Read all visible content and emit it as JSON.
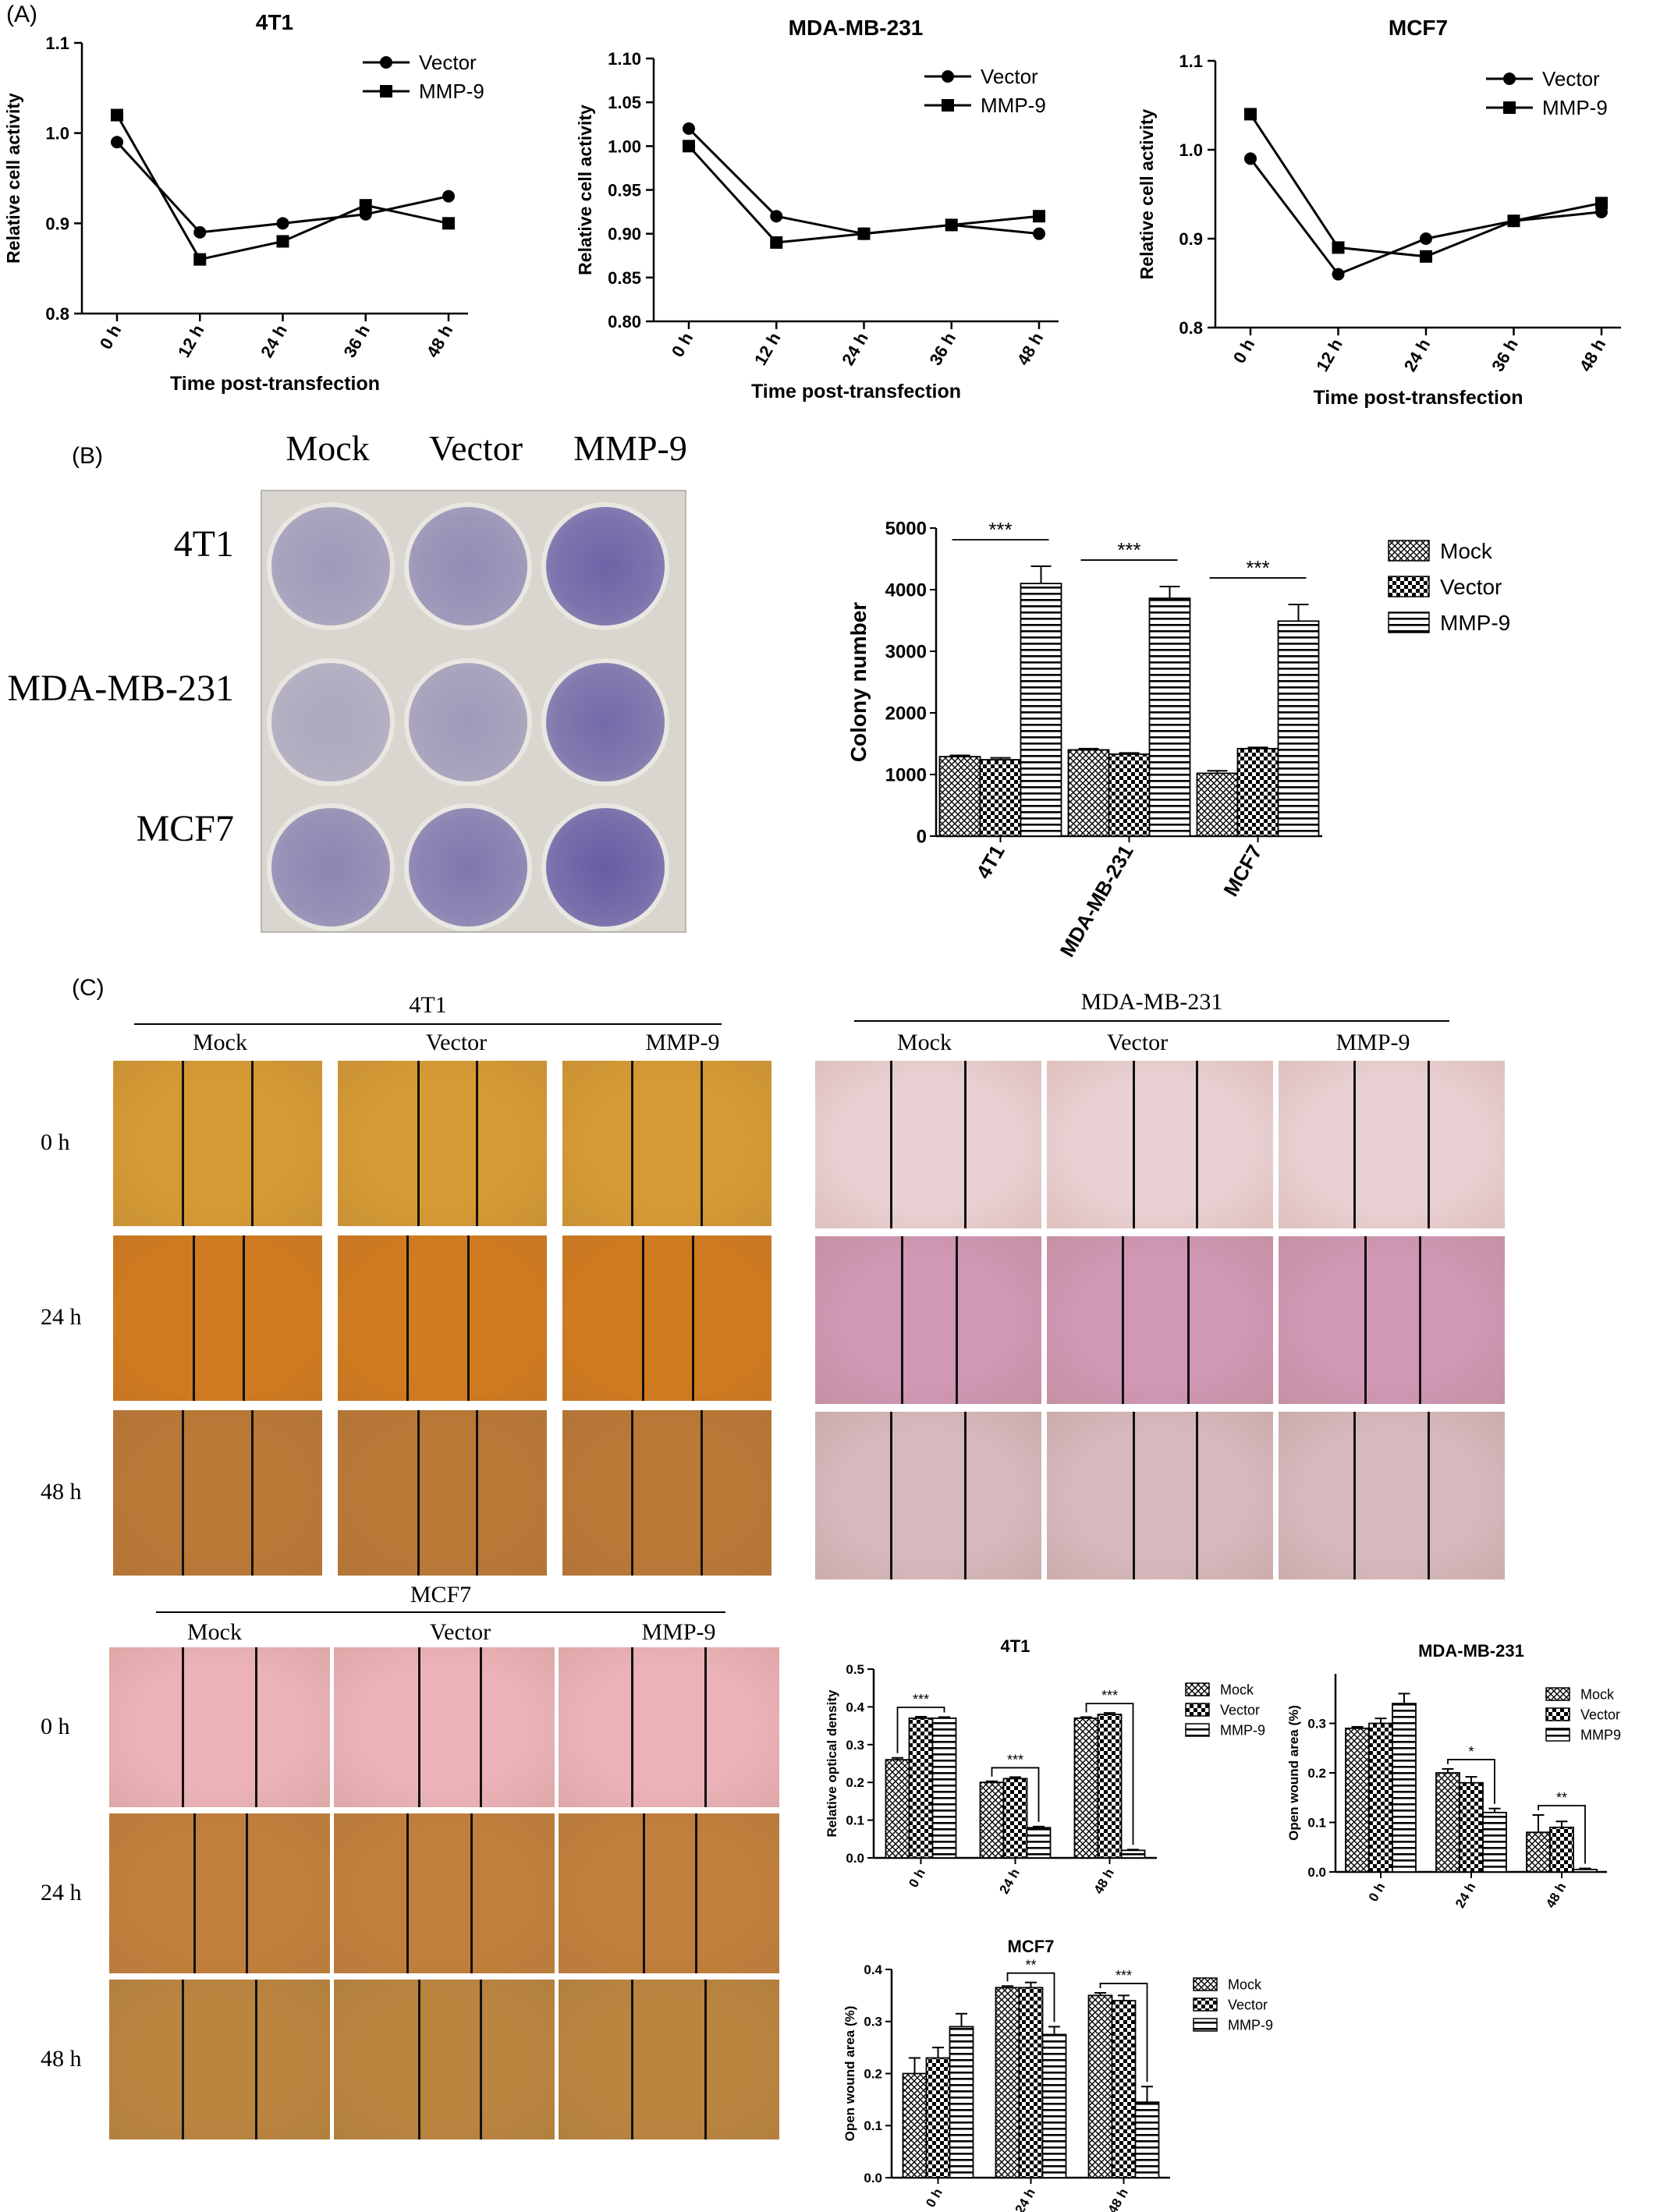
{
  "panels": {
    "a": "(A)",
    "b": "(B)",
    "c": "(C)"
  },
  "colors": {
    "purple_stain": "#5a4fa0",
    "orange_field": "#d8902b",
    "pink_field": "#e9b9c4",
    "mcf7_orange": "#c9783a"
  },
  "panel_a": {
    "charts": [
      {
        "id": "a1",
        "chart_data": {
          "type": "line",
          "title": "4T1",
          "xlabel": "Time post-transfection",
          "ylabel": "Relative cell activity",
          "categories": [
            "0 h",
            "12 h",
            "24 h",
            "36 h",
            "48 h"
          ],
          "yticks": [
            "0.8",
            "0.9",
            "1.0",
            "1.1"
          ],
          "ylim": [
            0.8,
            1.1
          ],
          "legend": "top-right",
          "series": [
            {
              "name": "Vector",
              "marker": "circle",
              "values": [
                0.99,
                0.89,
                0.9,
                0.91,
                0.93
              ]
            },
            {
              "name": "MMP-9",
              "marker": "square",
              "values": [
                1.02,
                0.86,
                0.88,
                0.92,
                0.9
              ]
            }
          ]
        }
      },
      {
        "id": "a2",
        "chart_data": {
          "type": "line",
          "title": "MDA-MB-231",
          "xlabel": "Time post-transfection",
          "ylabel": "Relative cell activity",
          "categories": [
            "0 h",
            "12 h",
            "24 h",
            "36 h",
            "48 h"
          ],
          "yticks": [
            "0.80",
            "0.85",
            "0.90",
            "0.95",
            "1.00",
            "1.05",
            "1.10"
          ],
          "ylim": [
            0.8,
            1.1
          ],
          "legend": "top-right",
          "series": [
            {
              "name": "Vector",
              "marker": "circle",
              "values": [
                1.02,
                0.92,
                0.9,
                0.91,
                0.9
              ]
            },
            {
              "name": "MMP-9",
              "marker": "square",
              "values": [
                1.0,
                0.89,
                0.9,
                0.91,
                0.92
              ]
            }
          ]
        }
      },
      {
        "id": "a3",
        "chart_data": {
          "type": "line",
          "title": "MCF7",
          "xlabel": "Time post-transfection",
          "ylabel": "Relative cell activity",
          "categories": [
            "0 h",
            "12 h",
            "24 h",
            "36 h",
            "48 h"
          ],
          "yticks": [
            "0.8",
            "0.9",
            "1.0",
            "1.1"
          ],
          "ylim": [
            0.8,
            1.1
          ],
          "legend": "top-right",
          "series": [
            {
              "name": "Vector",
              "marker": "circle",
              "values": [
                0.99,
                0.86,
                0.9,
                0.92,
                0.93
              ]
            },
            {
              "name": "MMP-9",
              "marker": "square",
              "values": [
                1.04,
                0.89,
                0.88,
                0.92,
                0.94
              ]
            }
          ]
        }
      }
    ]
  },
  "panel_b": {
    "plate": {
      "col_labels": [
        "Mock",
        "Vector",
        "MMP-9"
      ],
      "row_labels": [
        "4T1",
        "MDA-MB-231",
        "MCF7"
      ]
    },
    "chart_data": {
      "type": "bar",
      "title": "",
      "xlabel": "",
      "ylabel": "Colony number",
      "categories": [
        "4T1",
        "MDA-MB-231",
        "MCF7"
      ],
      "yticks": [
        "0",
        "1000",
        "2000",
        "3000",
        "4000",
        "5000"
      ],
      "ylim": [
        0,
        5000
      ],
      "legend": "top-right",
      "series": [
        {
          "name": "Mock",
          "pattern": "crosshatch",
          "values": [
            1290,
            1400,
            1020
          ],
          "errors": [
            20,
            20,
            40
          ]
        },
        {
          "name": "Vector",
          "pattern": "checker",
          "values": [
            1240,
            1330,
            1420
          ],
          "errors": [
            30,
            20,
            20
          ]
        },
        {
          "name": "MMP-9",
          "pattern": "hstripe",
          "values": [
            4100,
            3860,
            3490
          ],
          "errors": [
            280,
            190,
            270
          ]
        }
      ],
      "annotations": [
        {
          "category": "4T1",
          "text": "***"
        },
        {
          "category": "MDA-MB-231",
          "text": "***"
        },
        {
          "category": "MCF7",
          "text": "***"
        }
      ]
    }
  },
  "panel_c": {
    "micrographs": [
      {
        "group": "4T1",
        "col_labels": [
          "Mock",
          "Vector",
          "MMP-9"
        ],
        "row_labels": [
          "0 h",
          "24 h",
          "48 h"
        ]
      },
      {
        "group": "MDA-MB-231",
        "col_labels": [
          "Mock",
          "Vector",
          "MMP-9"
        ],
        "row_labels": []
      },
      {
        "group": "MCF7",
        "col_labels": [
          "Mock",
          "Vector",
          "MMP-9"
        ],
        "row_labels": [
          "0 h",
          "24 h",
          "48 h"
        ]
      }
    ],
    "charts": [
      {
        "id": "c1",
        "chart_data": {
          "type": "bar",
          "title": "4T1",
          "xlabel": "",
          "ylabel": "Relative optical density",
          "categories": [
            "0 h",
            "24 h",
            "48 h"
          ],
          "yticks": [
            "0.0",
            "0.1",
            "0.2",
            "0.3",
            "0.4",
            "0.5"
          ],
          "ylim": [
            0,
            0.5
          ],
          "legend": "top-right",
          "series": [
            {
              "name": "Mock",
              "pattern": "crosshatch",
              "values": [
                0.26,
                0.2,
                0.37
              ],
              "errors": [
                0.005,
                0.003,
                0.003
              ]
            },
            {
              "name": "Vector",
              "pattern": "checker",
              "values": [
                0.37,
                0.21,
                0.38
              ],
              "errors": [
                0.004,
                0.004,
                0.004
              ]
            },
            {
              "name": "MMP-9",
              "pattern": "hstripe",
              "values": [
                0.37,
                0.08,
                0.02
              ],
              "errors": [
                0.003,
                0.003,
                0.002
              ]
            }
          ],
          "annotations": [
            {
              "category": "0 h",
              "text": "***"
            },
            {
              "category": "24 h",
              "text": "***"
            },
            {
              "category": "48 h",
              "text": "***"
            }
          ]
        }
      },
      {
        "id": "c2",
        "chart_data": {
          "type": "bar",
          "title": "MDA-MB-231",
          "xlabel": "",
          "ylabel": "Open wound area (%)",
          "categories": [
            "0 h",
            "24 h",
            "48 h"
          ],
          "yticks": [
            "0.0",
            "0.1",
            "0.2",
            "0.3"
          ],
          "ylim": [
            0,
            0.4
          ],
          "legend": "top-right",
          "series": [
            {
              "name": "Mock",
              "pattern": "crosshatch",
              "values": [
                0.29,
                0.2,
                0.08
              ],
              "errors": [
                0.003,
                0.008,
                0.035
              ]
            },
            {
              "name": "Vector",
              "pattern": "checker",
              "values": [
                0.3,
                0.18,
                0.09
              ],
              "errors": [
                0.01,
                0.012,
                0.012
              ]
            },
            {
              "name": "MMP9",
              "pattern": "hstripe",
              "values": [
                0.34,
                0.12,
                0.005
              ],
              "errors": [
                0.02,
                0.008,
                0.002
              ]
            }
          ],
          "annotations": [
            {
              "category": "24 h",
              "text": "*"
            },
            {
              "category": "48 h",
              "text": "**"
            }
          ]
        }
      },
      {
        "id": "c3",
        "chart_data": {
          "type": "bar",
          "title": "MCF7",
          "xlabel": "",
          "ylabel": "Open wound area (%)",
          "categories": [
            "0 h",
            "24 h",
            "48 h"
          ],
          "yticks": [
            "0.0",
            "0.1",
            "0.2",
            "0.3",
            "0.4"
          ],
          "ylim": [
            0,
            0.4
          ],
          "legend": "top-right",
          "series": [
            {
              "name": "Mock",
              "pattern": "crosshatch",
              "values": [
                0.2,
                0.365,
                0.35
              ],
              "errors": [
                0.03,
                0.003,
                0.005
              ]
            },
            {
              "name": "Vector",
              "pattern": "checker",
              "values": [
                0.23,
                0.365,
                0.34
              ],
              "errors": [
                0.02,
                0.01,
                0.01
              ]
            },
            {
              "name": "MMP-9",
              "pattern": "hstripe",
              "values": [
                0.29,
                0.275,
                0.145
              ],
              "errors": [
                0.025,
                0.015,
                0.03
              ]
            }
          ],
          "annotations": [
            {
              "category": "24 h",
              "text": "**"
            },
            {
              "category": "48 h",
              "text": "***"
            }
          ]
        }
      }
    ]
  }
}
